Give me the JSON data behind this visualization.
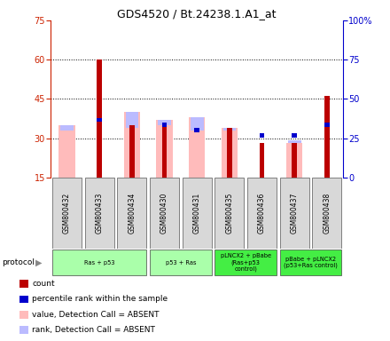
{
  "title": "GDS4520 / Bt.24238.1.A1_at",
  "samples": [
    "GSM800432",
    "GSM800433",
    "GSM800434",
    "GSM800430",
    "GSM800431",
    "GSM800435",
    "GSM800436",
    "GSM800437",
    "GSM800438"
  ],
  "absent_value_top": [
    35,
    0,
    40,
    37,
    38,
    34,
    0,
    28,
    0
  ],
  "absent_rank_top": [
    33,
    0,
    34,
    35,
    33,
    33,
    0,
    29,
    0
  ],
  "count_top": [
    0,
    60,
    0,
    36,
    0,
    34,
    28,
    28,
    46
  ],
  "rank_top": [
    0,
    37,
    35,
    36,
    0,
    33,
    0,
    0,
    35
  ],
  "blue_sq_val": [
    0,
    37,
    0,
    35,
    33,
    0,
    31,
    31,
    35
  ],
  "protocol_groups": [
    {
      "label": "Ras + p53",
      "start": 0,
      "end": 2,
      "color": "#aaffaa"
    },
    {
      "label": "p53 + Ras",
      "start": 3,
      "end": 4,
      "color": "#aaffaa"
    },
    {
      "label": "pLNCX2 + pBabe\n(Ras+p53\ncontrol)",
      "start": 5,
      "end": 6,
      "color": "#44ee44"
    },
    {
      "label": "pBabe + pLNCX2\n(p53+Ras control)",
      "start": 7,
      "end": 8,
      "color": "#44ee44"
    }
  ],
  "ylim": [
    15,
    75
  ],
  "yticks_left": [
    15,
    30,
    45,
    60,
    75
  ],
  "yticks_right": [
    0,
    25,
    50,
    75,
    100
  ],
  "left_axis_color": "#cc2200",
  "right_axis_color": "#0000cc",
  "color_count": "#bb0000",
  "color_absent_value": "#ffbbbb",
  "color_absent_rank": "#bbbbff",
  "color_blue_square": "#0000cc"
}
